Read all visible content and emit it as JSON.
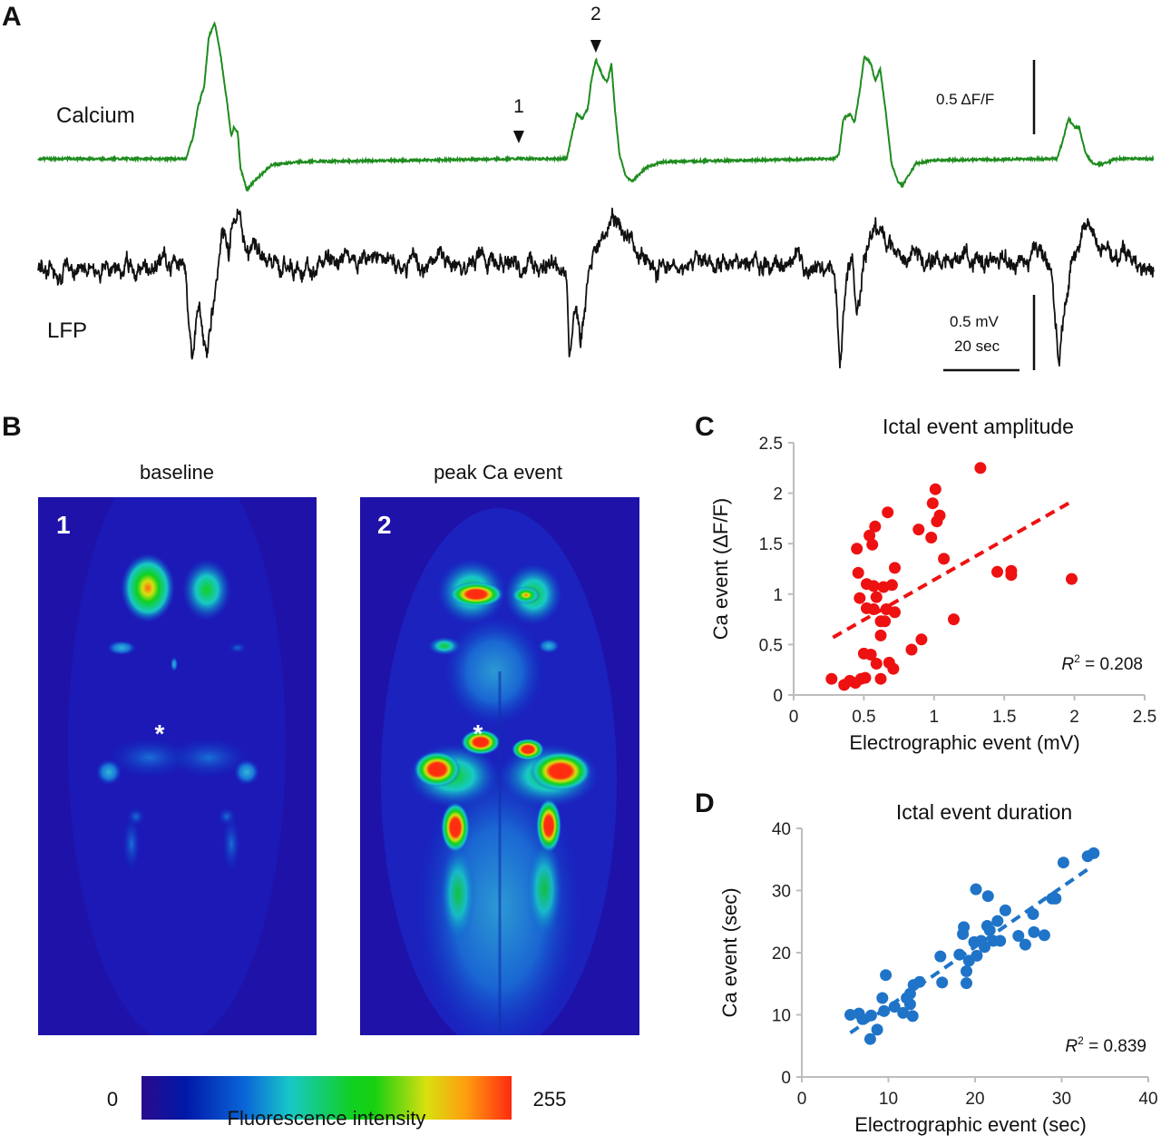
{
  "panels": {
    "A": {
      "letter": "A",
      "calcium_label": "Calcium",
      "lfp_label": "LFP",
      "marker_1": "1",
      "marker_2": "2",
      "calcium_scale_label": "0.5 ΔF/F",
      "lfp_scale_label": "0.5 mV",
      "time_scale_label": "20 sec",
      "calcium_color": "#1e8c1e",
      "lfp_color": "#111111"
    },
    "B": {
      "letter": "B",
      "image_1_title": "baseline",
      "image_2_title": "peak Ca event",
      "image_1_number": "1",
      "image_2_number": "2",
      "asterisk": "*",
      "colorbar_min": "0",
      "colorbar_max": "255",
      "colorbar_label": "Fluorescence intensity",
      "colormap": [
        "#2a0a8c",
        "#0018a8",
        "#0a66d8",
        "#18c8c8",
        "#10d020",
        "#18d010",
        "#d8e010",
        "#ff9a10",
        "#ff2a10"
      ]
    },
    "C": {
      "letter": "C"
    },
    "D": {
      "letter": "D"
    }
  },
  "traces": {
    "time_unit": "sec",
    "calcium": {
      "unit": "dF/F",
      "points": [
        [
          0,
          0
        ],
        [
          38.8,
          0
        ],
        [
          40.7,
          0.15
        ],
        [
          41.9,
          0.34
        ],
        [
          43.6,
          0.49
        ],
        [
          44.8,
          0.82
        ],
        [
          46.4,
          0.91
        ],
        [
          47.9,
          0.7
        ],
        [
          49.5,
          0.4
        ],
        [
          50.7,
          0.15
        ],
        [
          51.4,
          0.21
        ],
        [
          52.4,
          0.18
        ],
        [
          53.1,
          -0.06
        ],
        [
          54.8,
          -0.21
        ],
        [
          56.7,
          -0.15
        ],
        [
          61.4,
          -0.04
        ],
        [
          68.6,
          -0.02
        ],
        [
          125.7,
          0
        ],
        [
          138.8,
          0
        ],
        [
          140.0,
          0.15
        ],
        [
          141.4,
          0.3
        ],
        [
          142.9,
          0.27
        ],
        [
          144.3,
          0.34
        ],
        [
          145.2,
          0.52
        ],
        [
          146.4,
          0.67
        ],
        [
          148.3,
          0.55
        ],
        [
          149.5,
          0.52
        ],
        [
          150.5,
          0.64
        ],
        [
          151.4,
          0.34
        ],
        [
          152.6,
          0.03
        ],
        [
          154.3,
          -0.12
        ],
        [
          156.0,
          -0.15
        ],
        [
          159.5,
          -0.06
        ],
        [
          163.8,
          -0.02
        ],
        [
          209.0,
          0
        ],
        [
          210.2,
          0.03
        ],
        [
          211.4,
          0.27
        ],
        [
          213.3,
          0.3
        ],
        [
          214.3,
          0.24
        ],
        [
          215.7,
          0.46
        ],
        [
          216.9,
          0.69
        ],
        [
          218.6,
          0.64
        ],
        [
          219.8,
          0.52
        ],
        [
          221.0,
          0.61
        ],
        [
          222.4,
          0.34
        ],
        [
          224.0,
          -0.03
        ],
        [
          225.7,
          -0.15
        ],
        [
          226.9,
          -0.18
        ],
        [
          230.5,
          -0.03
        ],
        [
          235.2,
          -0.01
        ],
        [
          267.4,
          0
        ],
        [
          268.6,
          0.09
        ],
        [
          270.5,
          0.27
        ],
        [
          272.1,
          0.21
        ],
        [
          273.3,
          0.21
        ],
        [
          275.0,
          0.03
        ],
        [
          276.9,
          -0.03
        ],
        [
          279.3,
          -0.04
        ],
        [
          282.9,
          0
        ],
        [
          292.9,
          0
        ]
      ]
    },
    "lfp": {
      "unit": "mV",
      "points": [
        [
          0,
          0
        ],
        [
          37.6,
          0.02
        ],
        [
          38.8,
          -0.03
        ],
        [
          39.5,
          -0.39
        ],
        [
          40.5,
          -0.63
        ],
        [
          41.4,
          -0.39
        ],
        [
          42.4,
          -0.27
        ],
        [
          43.3,
          -0.51
        ],
        [
          44.3,
          -0.6
        ],
        [
          45.2,
          -0.33
        ],
        [
          46.2,
          -0.15
        ],
        [
          47.1,
          0.03
        ],
        [
          48.1,
          0.21
        ],
        [
          49.0,
          0.27
        ],
        [
          50.0,
          0.09
        ],
        [
          51.0,
          0.36
        ],
        [
          51.9,
          0.3
        ],
        [
          52.9,
          0.39
        ],
        [
          54.3,
          0.21
        ],
        [
          56.7,
          0.12
        ],
        [
          61.4,
          0.03
        ],
        [
          137.6,
          0.02
        ],
        [
          138.8,
          -0.03
        ],
        [
          139.5,
          -0.57
        ],
        [
          140.5,
          -0.39
        ],
        [
          141.4,
          -0.27
        ],
        [
          142.4,
          -0.45
        ],
        [
          143.3,
          -0.3
        ],
        [
          144.8,
          0
        ],
        [
          146.2,
          0.15
        ],
        [
          147.6,
          0.27
        ],
        [
          149.0,
          0.21
        ],
        [
          150.0,
          0.33
        ],
        [
          150.9,
          0.36
        ],
        [
          152.9,
          0.21
        ],
        [
          156.7,
          0.09
        ],
        [
          161.4,
          0.03
        ],
        [
          209.0,
          0.02
        ],
        [
          209.5,
          -0.15
        ],
        [
          210.5,
          -0.63
        ],
        [
          211.4,
          -0.27
        ],
        [
          212.6,
          -0.09
        ],
        [
          213.8,
          0.03
        ],
        [
          214.8,
          -0.39
        ],
        [
          215.7,
          -0.21
        ],
        [
          216.7,
          0.03
        ],
        [
          218.1,
          0.21
        ],
        [
          219.5,
          0.3
        ],
        [
          221.0,
          0.27
        ],
        [
          223.3,
          0.18
        ],
        [
          228.1,
          0.09
        ],
        [
          232.9,
          0.06
        ],
        [
          263.8,
          0.03
        ],
        [
          266.2,
          -0.03
        ],
        [
          267.4,
          -0.45
        ],
        [
          268.1,
          -0.63
        ],
        [
          269.0,
          -0.39
        ],
        [
          270.0,
          -0.21
        ],
        [
          271.0,
          -0.03
        ],
        [
          272.4,
          0.09
        ],
        [
          273.8,
          0.21
        ],
        [
          275.2,
          0.27
        ],
        [
          278.1,
          0.15
        ],
        [
          285.2,
          0.06
        ],
        [
          292.9,
          0
        ]
      ]
    },
    "markers": [
      {
        "label": "1",
        "time_sec": 125.7
      },
      {
        "label": "2",
        "time_sec": 146.4
      }
    ],
    "scale_bars": {
      "calcium_dff": 0.5,
      "lfp_mv": 0.5,
      "time_sec": 20
    }
  },
  "chart_data": [
    {
      "id": "C",
      "type": "scatter",
      "title": "Ictal event amplitude",
      "xlabel": "Electrographic event (mV)",
      "ylabel": "Ca event (ΔF/F)",
      "xlim": [
        0,
        2.5
      ],
      "ylim": [
        0,
        2.5
      ],
      "xticks": [
        "0",
        "0.5",
        "1",
        "1.5",
        "2",
        "2.5"
      ],
      "yticks": [
        "0",
        "0.5",
        "1",
        "1.5",
        "2",
        "2.5"
      ],
      "xtick_values": [
        0,
        0.5,
        1,
        1.5,
        2,
        2.5
      ],
      "ytick_values": [
        0,
        0.5,
        1,
        1.5,
        2,
        2.5
      ],
      "grid": false,
      "color": "#ee1111",
      "annotation": {
        "r2_label": "R",
        "r2_sup": "2",
        "r2_value": "= 0.208"
      },
      "trendline": {
        "x": [
          0.28,
          1.97
        ],
        "y": [
          0.57,
          1.91
        ]
      },
      "points": [
        [
          1.33,
          2.25
        ],
        [
          1.01,
          2.04
        ],
        [
          0.99,
          1.9
        ],
        [
          1.04,
          1.78
        ],
        [
          1.02,
          1.72
        ],
        [
          0.67,
          1.81
        ],
        [
          0.58,
          1.67
        ],
        [
          0.54,
          1.58
        ],
        [
          0.56,
          1.49
        ],
        [
          0.45,
          1.45
        ],
        [
          0.89,
          1.64
        ],
        [
          0.98,
          1.56
        ],
        [
          1.07,
          1.35
        ],
        [
          0.72,
          1.26
        ],
        [
          0.46,
          1.21
        ],
        [
          1.45,
          1.22
        ],
        [
          1.55,
          1.23
        ],
        [
          1.55,
          1.19
        ],
        [
          1.98,
          1.15
        ],
        [
          0.52,
          1.1
        ],
        [
          0.57,
          1.08
        ],
        [
          0.64,
          1.07
        ],
        [
          0.7,
          1.09
        ],
        [
          0.47,
          0.96
        ],
        [
          0.59,
          0.97
        ],
        [
          0.52,
          0.86
        ],
        [
          0.57,
          0.85
        ],
        [
          0.66,
          0.85
        ],
        [
          0.72,
          0.82
        ],
        [
          0.62,
          0.73
        ],
        [
          0.65,
          0.73
        ],
        [
          1.14,
          0.75
        ],
        [
          0.62,
          0.59
        ],
        [
          0.91,
          0.55
        ],
        [
          0.84,
          0.45
        ],
        [
          0.5,
          0.41
        ],
        [
          0.55,
          0.4
        ],
        [
          0.59,
          0.31
        ],
        [
          0.68,
          0.32
        ],
        [
          0.71,
          0.26
        ],
        [
          0.27,
          0.16
        ],
        [
          0.36,
          0.1
        ],
        [
          0.4,
          0.14
        ],
        [
          0.44,
          0.12
        ],
        [
          0.48,
          0.16
        ],
        [
          0.51,
          0.17
        ],
        [
          0.62,
          0.16
        ]
      ]
    },
    {
      "id": "D",
      "type": "scatter",
      "title": "Ictal event duration",
      "xlabel": "Electrographic event (sec)",
      "ylabel": "Ca event (sec)",
      "xlim": [
        0,
        40
      ],
      "ylim": [
        0,
        40
      ],
      "xticks": [
        "0",
        "10",
        "20",
        "30",
        "40"
      ],
      "yticks": [
        "0",
        "10",
        "20",
        "30",
        "40"
      ],
      "xtick_values": [
        0,
        10,
        20,
        30,
        40
      ],
      "ytick_values": [
        0,
        10,
        20,
        30,
        40
      ],
      "grid": false,
      "color": "#1f74c8",
      "annotation": {
        "r2_label": "R",
        "r2_sup": "2",
        "r2_value": "= 0.839"
      },
      "trendline": {
        "x": [
          5.6,
          33.1
        ],
        "y": [
          7.1,
          33.5
        ]
      },
      "points": [
        [
          5.6,
          10.0
        ],
        [
          6.6,
          10.2
        ],
        [
          7.0,
          9.3
        ],
        [
          8.0,
          9.9
        ],
        [
          8.7,
          7.6
        ],
        [
          7.9,
          6.1
        ],
        [
          9.3,
          12.7
        ],
        [
          9.5,
          10.6
        ],
        [
          9.7,
          16.4
        ],
        [
          10.7,
          11.3
        ],
        [
          11.7,
          10.3
        ],
        [
          12.1,
          12.7
        ],
        [
          12.5,
          11.7
        ],
        [
          12.8,
          9.8
        ],
        [
          12.5,
          13.4
        ],
        [
          12.9,
          14.8
        ],
        [
          13.6,
          15.3
        ],
        [
          16.0,
          19.4
        ],
        [
          16.2,
          15.2
        ],
        [
          18.2,
          19.7
        ],
        [
          18.7,
          24.1
        ],
        [
          18.6,
          23.0
        ],
        [
          19.0,
          17.0
        ],
        [
          19.0,
          15.1
        ],
        [
          19.3,
          18.7
        ],
        [
          19.9,
          21.7
        ],
        [
          20.1,
          30.2
        ],
        [
          20.2,
          19.5
        ],
        [
          20.7,
          21.9
        ],
        [
          21.1,
          20.9
        ],
        [
          21.4,
          24.3
        ],
        [
          21.5,
          29.1
        ],
        [
          21.7,
          23.6
        ],
        [
          22.1,
          21.9
        ],
        [
          22.6,
          25.1
        ],
        [
          22.9,
          21.9
        ],
        [
          23.5,
          26.8
        ],
        [
          25.0,
          22.7
        ],
        [
          25.8,
          21.3
        ],
        [
          26.7,
          26.2
        ],
        [
          26.8,
          23.3
        ],
        [
          28.0,
          22.8
        ],
        [
          28.9,
          28.7
        ],
        [
          29.3,
          28.7
        ],
        [
          30.2,
          34.5
        ],
        [
          33.0,
          35.5
        ],
        [
          33.7,
          36.0
        ]
      ]
    }
  ]
}
